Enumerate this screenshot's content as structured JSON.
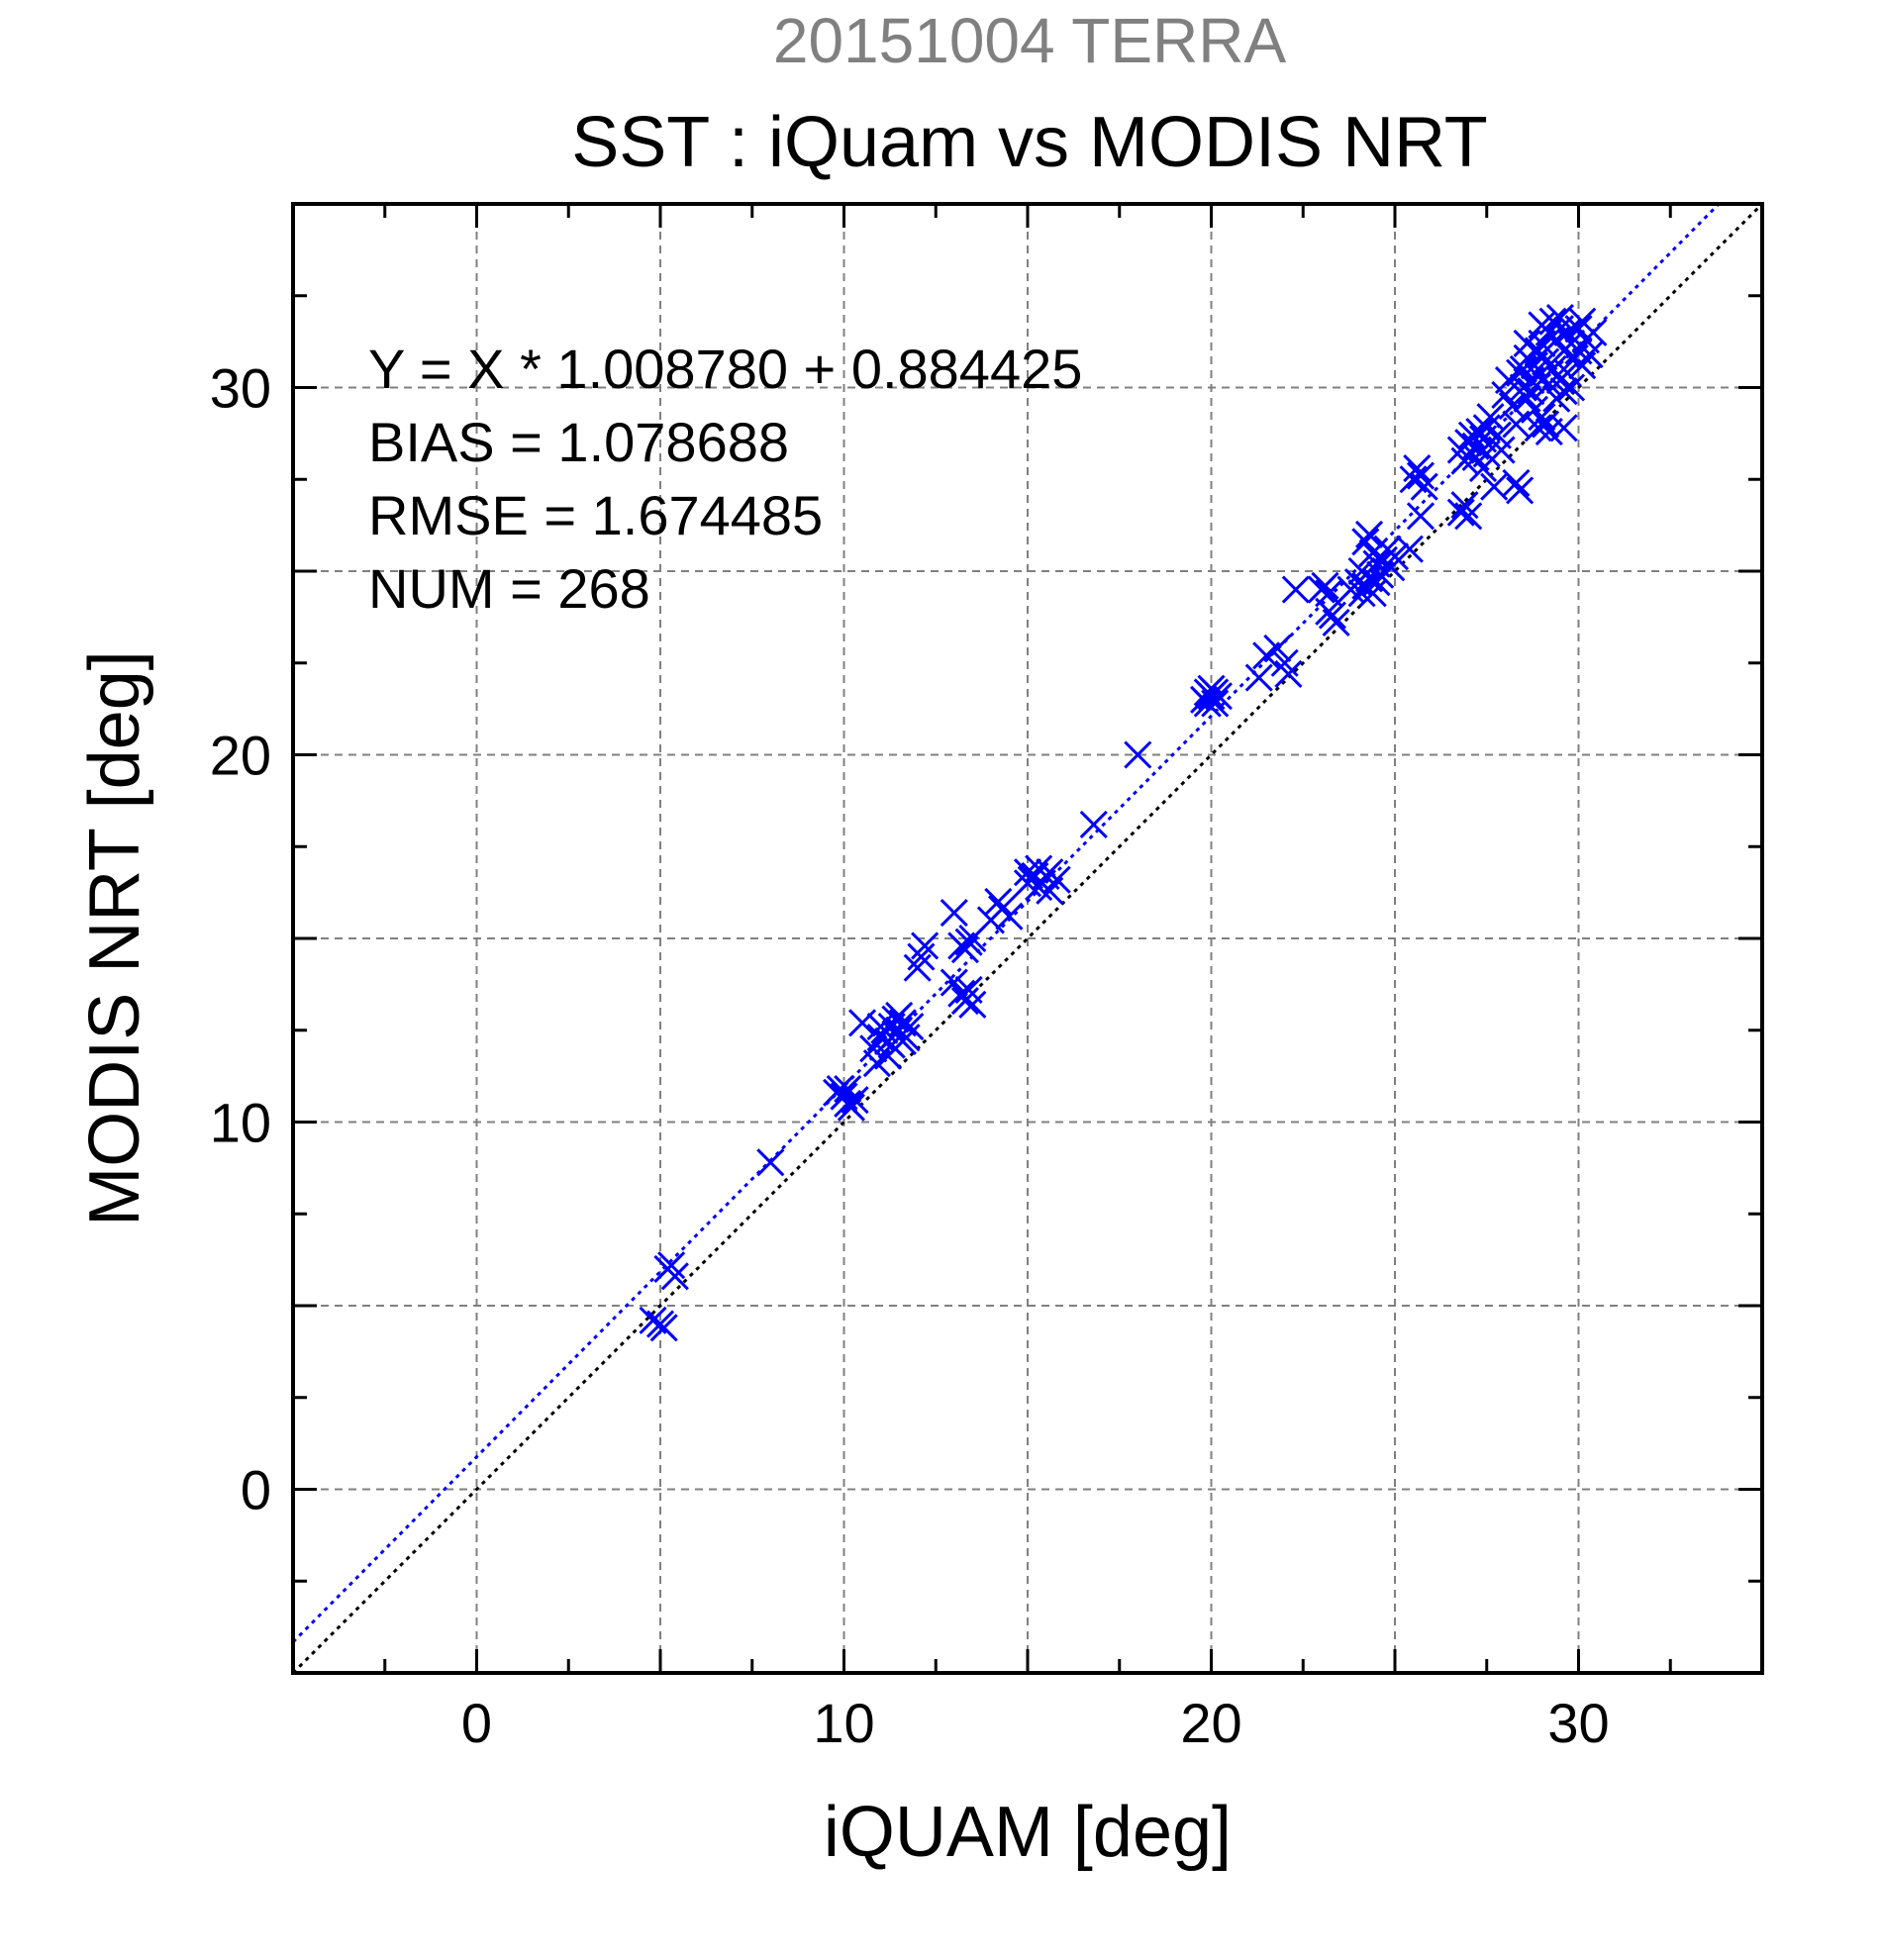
{
  "chart_data": {
    "type": "scatter",
    "suptitle": "20151004 TERRA",
    "title": "SST : iQuam vs MODIS NRT",
    "xlabel": "iQUAM [deg]",
    "ylabel": "MODIS NRT [deg]",
    "xlim": [
      -5,
      35
    ],
    "ylim": [
      -5,
      35
    ],
    "xticks": [
      0,
      10,
      20,
      30
    ],
    "yticks": [
      0,
      10,
      20,
      30
    ],
    "grid": true,
    "stats": [
      "Y = X * 1.008780 + 0.884425",
      "BIAS = 1.078688",
      "RMSE = 1.674485",
      "NUM = 268"
    ],
    "reference_line": {
      "slope": 1,
      "intercept": 0,
      "color": "#000000",
      "style": "dotted"
    },
    "fit_line": {
      "slope": 1.00878,
      "intercept": 0.884425,
      "color": "#0000ff",
      "style": "dotted"
    },
    "marker": "x",
    "colors": {
      "points": "#0000ff",
      "frame": "#000000",
      "grid": "#808080",
      "suptitle": "#808080"
    },
    "points": [
      [
        4.8,
        4.6
      ],
      [
        5.0,
        4.5
      ],
      [
        5.1,
        4.4
      ],
      [
        5.2,
        6.0
      ],
      [
        5.4,
        5.8
      ],
      [
        5.3,
        6.1
      ],
      [
        8.0,
        8.9
      ],
      [
        9.8,
        10.8
      ],
      [
        10.0,
        10.7
      ],
      [
        10.1,
        10.5
      ],
      [
        10.2,
        10.4
      ],
      [
        10.3,
        10.6
      ],
      [
        9.9,
        10.9
      ],
      [
        10.1,
        10.9
      ],
      [
        10.5,
        12.7
      ],
      [
        10.8,
        12.0
      ],
      [
        11.0,
        12.3
      ],
      [
        11.1,
        12.5
      ],
      [
        11.2,
        12.2
      ],
      [
        11.3,
        12.6
      ],
      [
        11.4,
        12.4
      ],
      [
        11.5,
        12.5
      ],
      [
        11.6,
        12.7
      ],
      [
        11.7,
        12.3
      ],
      [
        11.2,
        11.8
      ],
      [
        11.0,
        12.6
      ],
      [
        11.4,
        12.8
      ],
      [
        11.6,
        12.2
      ],
      [
        11.8,
        12.6
      ],
      [
        10.9,
        11.6
      ],
      [
        11.3,
        12.1
      ],
      [
        11.5,
        12.9
      ],
      [
        12.0,
        14.2
      ],
      [
        12.1,
        14.5
      ],
      [
        12.2,
        14.8
      ],
      [
        13.0,
        15.7
      ],
      [
        13.2,
        14.8
      ],
      [
        13.4,
        14.9
      ],
      [
        13.5,
        15.0
      ],
      [
        13.3,
        14.7
      ],
      [
        13.0,
        13.8
      ],
      [
        13.2,
        13.5
      ],
      [
        13.3,
        13.3
      ],
      [
        13.5,
        13.2
      ],
      [
        13.4,
        13.6
      ],
      [
        14.0,
        15.5
      ],
      [
        14.3,
        15.8
      ],
      [
        14.5,
        15.6
      ],
      [
        14.2,
        16.0
      ],
      [
        15.0,
        16.8
      ],
      [
        15.1,
        16.6
      ],
      [
        15.2,
        16.7
      ],
      [
        15.3,
        16.9
      ],
      [
        15.4,
        16.5
      ],
      [
        15.5,
        16.7
      ],
      [
        15.6,
        16.3
      ],
      [
        15.0,
        16.5
      ],
      [
        15.3,
        16.4
      ],
      [
        15.6,
        16.8
      ],
      [
        15.8,
        16.6
      ],
      [
        16.8,
        18.1
      ],
      [
        18.0,
        20.0
      ],
      [
        19.8,
        21.5
      ],
      [
        19.9,
        21.7
      ],
      [
        20.0,
        21.6
      ],
      [
        20.1,
        21.4
      ],
      [
        20.2,
        21.6
      ],
      [
        20.0,
        21.8
      ],
      [
        19.9,
        21.4
      ],
      [
        20.1,
        21.7
      ],
      [
        21.3,
        22.1
      ],
      [
        21.5,
        22.7
      ],
      [
        21.8,
        22.9
      ],
      [
        22.0,
        22.5
      ],
      [
        22.1,
        22.2
      ],
      [
        22.3,
        24.5
      ],
      [
        23.0,
        24.5
      ],
      [
        23.1,
        24.6
      ],
      [
        23.2,
        24.4
      ],
      [
        23.3,
        23.8
      ],
      [
        23.4,
        23.6
      ],
      [
        23.2,
        23.9
      ],
      [
        23.8,
        24.5
      ],
      [
        24.0,
        24.7
      ],
      [
        24.1,
        24.4
      ],
      [
        24.2,
        24.6
      ],
      [
        24.3,
        24.8
      ],
      [
        24.1,
        25.0
      ],
      [
        24.2,
        25.8
      ],
      [
        24.3,
        26.0
      ],
      [
        24.4,
        25.5
      ],
      [
        24.5,
        25.2
      ],
      [
        24.6,
        24.9
      ],
      [
        24.7,
        25.3
      ],
      [
        24.5,
        24.7
      ],
      [
        24.4,
        24.4
      ],
      [
        24.8,
        25.6
      ],
      [
        24.9,
        25.1
      ],
      [
        25.0,
        25.4
      ],
      [
        25.4,
        25.6
      ],
      [
        25.5,
        27.5
      ],
      [
        25.6,
        27.8
      ],
      [
        25.7,
        27.6
      ],
      [
        25.8,
        27.3
      ],
      [
        25.7,
        26.5
      ],
      [
        26.8,
        26.6
      ],
      [
        26.9,
        26.8
      ],
      [
        27.0,
        26.5
      ],
      [
        26.8,
        28.3
      ],
      [
        26.9,
        28.0
      ],
      [
        27.0,
        28.5
      ],
      [
        27.1,
        28.7
      ],
      [
        27.2,
        28.4
      ],
      [
        27.3,
        28.8
      ],
      [
        27.2,
        28.1
      ],
      [
        27.4,
        28.6
      ],
      [
        27.5,
        28.9
      ],
      [
        27.6,
        29.2
      ],
      [
        27.5,
        28.2
      ],
      [
        27.7,
        27.3
      ],
      [
        27.8,
        28.7
      ],
      [
        27.9,
        28.3
      ],
      [
        27.4,
        27.8
      ],
      [
        28.0,
        29.8
      ],
      [
        28.1,
        30.2
      ],
      [
        28.2,
        29.5
      ],
      [
        28.3,
        27.4
      ],
      [
        28.4,
        27.2
      ],
      [
        28.3,
        29.0
      ],
      [
        28.4,
        30.4
      ],
      [
        28.5,
        30.0
      ],
      [
        28.6,
        29.7
      ],
      [
        28.5,
        30.5
      ],
      [
        28.6,
        30.8
      ],
      [
        28.7,
        30.2
      ],
      [
        28.8,
        30.6
      ],
      [
        28.9,
        31.0
      ],
      [
        28.8,
        29.4
      ],
      [
        28.7,
        29.9
      ],
      [
        28.9,
        30.3
      ],
      [
        29.0,
        30.9
      ],
      [
        29.0,
        29.2
      ],
      [
        28.9,
        28.9
      ],
      [
        29.1,
        29.0
      ],
      [
        29.0,
        31.2
      ],
      [
        29.1,
        30.7
      ],
      [
        29.2,
        31.5
      ],
      [
        29.2,
        30.1
      ],
      [
        29.3,
        31.8
      ],
      [
        29.4,
        31.3
      ],
      [
        29.3,
        30.5
      ],
      [
        29.4,
        29.7
      ],
      [
        29.5,
        30.2
      ],
      [
        29.5,
        31.6
      ],
      [
        29.6,
        31.0
      ],
      [
        29.7,
        30.4
      ],
      [
        29.6,
        29.9
      ],
      [
        29.8,
        31.2
      ],
      [
        29.9,
        30.8
      ],
      [
        29.7,
        31.5
      ],
      [
        29.8,
        30.0
      ],
      [
        30.0,
        31.0
      ],
      [
        30.1,
        30.6
      ],
      [
        30.0,
        31.6
      ],
      [
        30.2,
        31.3
      ],
      [
        30.3,
        30.9
      ],
      [
        30.1,
        31.8
      ],
      [
        30.4,
        31.5
      ],
      [
        29.6,
        28.9
      ],
      [
        29.2,
        28.8
      ],
      [
        28.6,
        31.2
      ],
      [
        29.0,
        31.7
      ],
      [
        29.5,
        31.9
      ]
    ]
  }
}
